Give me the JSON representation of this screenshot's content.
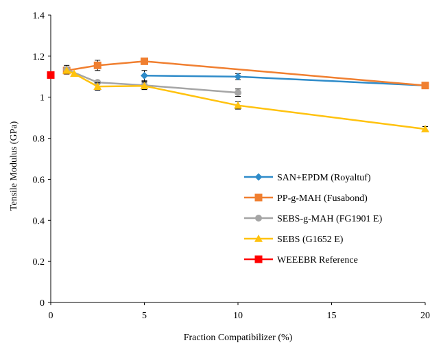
{
  "chart_data": {
    "type": "line",
    "title": "",
    "xlabel": "Fraction Compatibilizer (%)",
    "ylabel": "Tensile Modulus (GPa)",
    "xlim": [
      0,
      20
    ],
    "ylim": [
      0,
      1.4
    ],
    "xticks": [
      0,
      5,
      10,
      15,
      20
    ],
    "yticks": [
      0,
      0.2,
      0.4,
      0.6,
      0.8,
      1,
      1.2,
      1.4
    ],
    "grid": false,
    "legend_position": "right",
    "series": [
      {
        "name": "SAN+EPDM (Royaltuf)",
        "color": "#2E8BC9",
        "marker": "diamond",
        "points": [
          {
            "x": 5,
            "y": 1.105,
            "err": 0.025
          },
          {
            "x": 10,
            "y": 1.1,
            "err": 0.015
          },
          {
            "x": 20,
            "y": 1.057,
            "err": 0.0
          }
        ]
      },
      {
        "name": "PP-g-MAH (Fusabond)",
        "color": "#F07F30",
        "marker": "square",
        "points": [
          {
            "x": 0.85,
            "y": 1.13,
            "err": 0.018
          },
          {
            "x": 2.5,
            "y": 1.155,
            "err": 0.025
          },
          {
            "x": 5,
            "y": 1.175,
            "err": 0.0
          },
          {
            "x": 20,
            "y": 1.057,
            "err": 0.0
          }
        ]
      },
      {
        "name": "SEBS-g-MAH (FG1901 E)",
        "color": "#A5A5A5",
        "marker": "circle",
        "points": [
          {
            "x": 0.85,
            "y": 1.135,
            "err": 0.02
          },
          {
            "x": 2.5,
            "y": 1.072,
            "err": 0.0
          },
          {
            "x": 5,
            "y": 1.058,
            "err": 0.02
          },
          {
            "x": 10,
            "y": 1.022,
            "err": 0.018
          }
        ]
      },
      {
        "name": "SEBS (G1652 E)",
        "color": "#FFC20E",
        "marker": "triangle",
        "points": [
          {
            "x": 0.85,
            "y": 1.13,
            "err": 0.0
          },
          {
            "x": 1.25,
            "y": 1.115,
            "err": 0.0
          },
          {
            "x": 2.5,
            "y": 1.052,
            "err": 0.018
          },
          {
            "x": 5,
            "y": 1.055,
            "err": 0.018
          },
          {
            "x": 10,
            "y": 0.96,
            "err": 0.018
          },
          {
            "x": 20,
            "y": 0.845,
            "err": 0.012
          }
        ]
      },
      {
        "name": "WEEEBR Reference",
        "color": "#FF0000",
        "marker": "square",
        "points": [
          {
            "x": 0,
            "y": 1.108,
            "err": 0.0
          }
        ]
      }
    ]
  }
}
